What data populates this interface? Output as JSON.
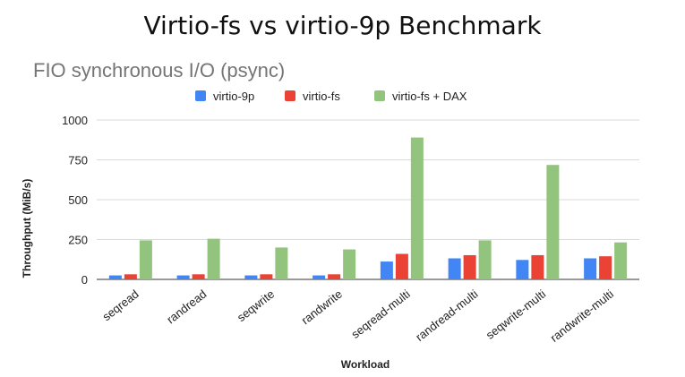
{
  "slide_title": "Virtio-fs vs virtio-9p Benchmark",
  "chart_data": {
    "type": "bar",
    "title": "FIO synchronous I/O (psync)",
    "xlabel": "Workload",
    "ylabel": "Throughput (MiB/s)",
    "ylim": [
      0,
      1000
    ],
    "yticks": [
      0,
      250,
      500,
      750,
      1000
    ],
    "grid": true,
    "legend_position": "top",
    "categories": [
      "seqread",
      "randread",
      "seqwrite",
      "randwrite",
      "seqread-multi",
      "randread-multi",
      "seqwrite-multi",
      "randwrite-multi"
    ],
    "series": [
      {
        "name": "virtio-9p",
        "color": "#4285f4",
        "values": [
          25,
          25,
          25,
          25,
          112,
          132,
          122,
          132
        ]
      },
      {
        "name": "virtio-fs",
        "color": "#ea4335",
        "values": [
          32,
          32,
          32,
          32,
          160,
          152,
          152,
          145
        ]
      },
      {
        "name": "virtio-fs + DAX",
        "color": "#93c47d",
        "values": [
          245,
          255,
          200,
          188,
          890,
          245,
          718,
          232
        ]
      }
    ]
  }
}
